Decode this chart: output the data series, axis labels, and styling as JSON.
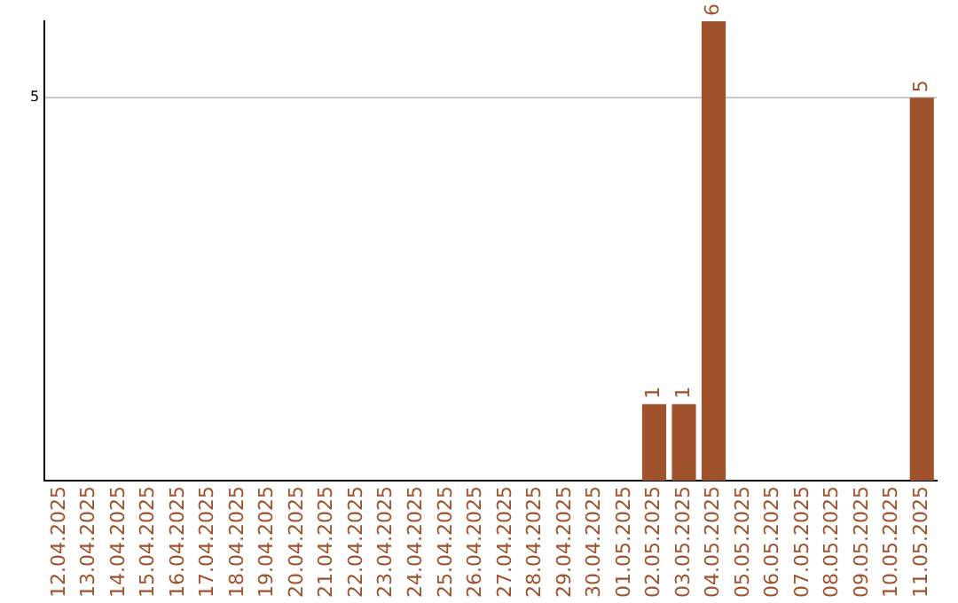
{
  "chart_data": {
    "type": "bar",
    "categories": [
      "12.04.2025",
      "13.04.2025",
      "14.04.2025",
      "15.04.2025",
      "16.04.2025",
      "17.04.2025",
      "18.04.2025",
      "19.04.2025",
      "20.04.2025",
      "21.04.2025",
      "22.04.2025",
      "23.04.2025",
      "24.04.2025",
      "25.04.2025",
      "26.04.2025",
      "27.04.2025",
      "28.04.2025",
      "29.04.2025",
      "30.04.2025",
      "01.05.2025",
      "02.05.2025",
      "03.05.2025",
      "04.05.2025",
      "05.05.2025",
      "06.05.2025",
      "07.05.2025",
      "08.05.2025",
      "09.05.2025",
      "10.05.2025",
      "11.05.2025"
    ],
    "values": [
      null,
      null,
      null,
      null,
      null,
      null,
      null,
      null,
      null,
      null,
      null,
      null,
      null,
      null,
      null,
      null,
      null,
      null,
      null,
      null,
      1,
      1,
      6,
      null,
      null,
      null,
      null,
      null,
      null,
      5
    ],
    "color": "#a0522d",
    "ylim": [
      0,
      6
    ],
    "yticks": [
      5
    ],
    "grid": "y",
    "data_labels": true,
    "legend": false
  }
}
